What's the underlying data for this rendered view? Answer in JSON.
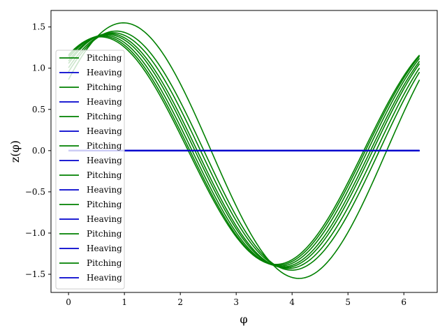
{
  "chart_data": {
    "type": "line",
    "xlabel": "φ",
    "ylabel": "z(φ)",
    "xlim": [
      -0.314,
      6.597
    ],
    "ylim": [
      -1.72,
      1.7
    ],
    "xticks": [
      "0",
      "1",
      "2",
      "3",
      "4",
      "5",
      "6"
    ],
    "yticks": [
      "1.5",
      "1.0",
      "0.5",
      "0.0",
      "−0.5",
      "−1.0",
      "−1.5"
    ],
    "grid": false,
    "legend_position": "upper-left",
    "colors": {
      "pitching": "#008000",
      "heaving": "#0000cd"
    },
    "series": [
      {
        "name": "Pitching",
        "kind": "pitching",
        "x_range": [
          0,
          6.28
        ],
        "amplitude": 1.55,
        "phase": 0.59,
        "values_summary": {
          "max": 1.55,
          "min": -1.55
        }
      },
      {
        "name": "Heaving",
        "kind": "heaving",
        "x_range": [
          0,
          6.28
        ],
        "constant": 0.0
      },
      {
        "name": "Pitching",
        "kind": "pitching",
        "x_range": [
          0,
          6.28
        ],
        "amplitude": 1.45,
        "phase": 0.72
      },
      {
        "name": "Heaving",
        "kind": "heaving",
        "x_range": [
          0,
          6.28
        ],
        "constant": 0.0
      },
      {
        "name": "Pitching",
        "kind": "pitching",
        "x_range": [
          0,
          6.28
        ],
        "amplitude": 1.42,
        "phase": 0.84
      },
      {
        "name": "Heaving",
        "kind": "heaving",
        "x_range": [
          0,
          6.28
        ],
        "constant": 0.0
      },
      {
        "name": "Pitching",
        "kind": "pitching",
        "x_range": [
          0,
          6.28
        ],
        "amplitude": 1.4,
        "phase": 0.93
      },
      {
        "name": "Heaving",
        "kind": "heaving",
        "x_range": [
          0,
          6.28
        ],
        "constant": 0.0
      },
      {
        "name": "Pitching",
        "kind": "pitching",
        "x_range": [
          0,
          6.28
        ],
        "amplitude": 1.38,
        "phase": 1.0
      },
      {
        "name": "Heaving",
        "kind": "heaving",
        "x_range": [
          0,
          6.28
        ],
        "constant": 0.0
      },
      {
        "name": "Pitching",
        "kind": "pitching",
        "x_range": [
          0,
          6.28
        ],
        "amplitude": 1.43,
        "phase": 0.78
      },
      {
        "name": "Heaving",
        "kind": "heaving",
        "x_range": [
          0,
          6.28
        ],
        "constant": 0.0
      },
      {
        "name": "Pitching",
        "kind": "pitching",
        "x_range": [
          0,
          6.28
        ],
        "amplitude": 1.41,
        "phase": 0.88
      },
      {
        "name": "Heaving",
        "kind": "heaving",
        "x_range": [
          0,
          6.28
        ],
        "constant": 0.0
      },
      {
        "name": "Pitching",
        "kind": "pitching",
        "x_range": [
          0,
          6.28
        ],
        "amplitude": 1.39,
        "phase": 0.97
      },
      {
        "name": "Heaving",
        "kind": "heaving",
        "x_range": [
          0,
          6.28
        ],
        "constant": 0.0
      }
    ]
  }
}
